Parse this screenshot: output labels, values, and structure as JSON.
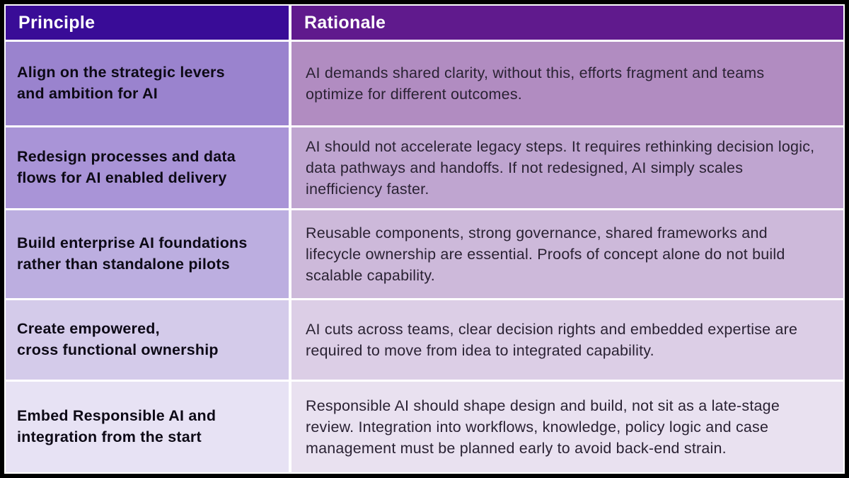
{
  "table": {
    "columns": [
      {
        "label": "Principle"
      },
      {
        "label": "Rationale"
      }
    ],
    "header_colors": {
      "principle_bg": "#390c97",
      "rationale_bg": "#601a8d",
      "text": "#ffffff"
    },
    "border_color": "#000000",
    "gap_color": "#ffffff",
    "rows": [
      {
        "principle": "Align on the strategic levers\nand ambition for AI",
        "rationale": "AI demands shared clarity, without this, efforts fragment and teams optimize for different outcomes.",
        "principle_bg": "#9a83ce",
        "rationale_bg": "#b18cc1"
      },
      {
        "principle": "Redesign processes and data\nflows for AI enabled delivery",
        "rationale": "AI should not accelerate legacy steps. It requires rethinking decision logic, data pathways and handoffs. If not redesigned, AI simply scales inefficiency faster.",
        "principle_bg": "#a994d7",
        "rationale_bg": "#bfa5d0"
      },
      {
        "principle": "Build enterprise AI foundations\nrather than standalone pilots",
        "rationale": "Reusable components, strong governance, shared frameworks and lifecycle ownership are essential. Proofs of concept alone do not build scalable capability.",
        "principle_bg": "#bcaee0",
        "rationale_bg": "#cdb9da"
      },
      {
        "principle": "Create empowered,\ncross functional ownership",
        "rationale": "AI cuts across teams, clear decision rights and embedded expertise are required to move from idea to integrated capability.",
        "principle_bg": "#d4cbea",
        "rationale_bg": "#dccee6"
      },
      {
        "principle": "Embed Responsible AI and\nintegration from the start",
        "rationale": "Responsible AI should shape design and build, not sit as a late-stage review. Integration into workflows, knowledge, policy logic and case management must be planned early to avoid back-end strain.",
        "principle_bg": "#e7e2f4",
        "rationale_bg": "#e9e1f0"
      }
    ]
  }
}
